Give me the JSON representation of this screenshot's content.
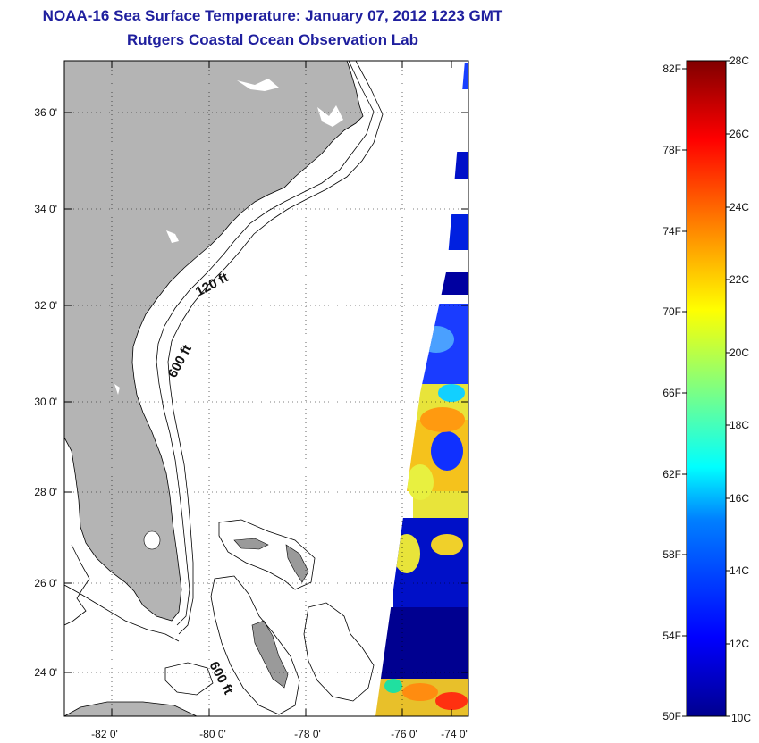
{
  "header": {
    "title": "NOAA-16 Sea Surface Temperature:  January 07, 2012 1223 GMT",
    "subtitle": "Rutgers Coastal Ocean Observation Lab"
  },
  "map": {
    "lat_labels": [
      "36 0'",
      "34 0'",
      "32 0'",
      "30 0'",
      "28 0'",
      "26 0'",
      "24 0'"
    ],
    "lon_labels": [
      "-82 0'",
      "-80 0'",
      "-78 0'",
      "-76 0'",
      "-74 0'"
    ],
    "contour_labels": [
      "120 ft",
      "600 ft",
      "600 ft"
    ],
    "colors": {
      "land": "#b4b4b4",
      "ocean_nodata": "#ffffff",
      "frame": "#000000"
    }
  },
  "colorbar": {
    "f_labels": [
      "82F",
      "78F",
      "74F",
      "70F",
      "66F",
      "62F",
      "58F",
      "54F",
      "50F"
    ],
    "c_labels": [
      "28C",
      "26C",
      "24C",
      "22C",
      "20C",
      "18C",
      "16C",
      "14C",
      "12C",
      "10C"
    ],
    "range_c": [
      10,
      28
    ]
  }
}
